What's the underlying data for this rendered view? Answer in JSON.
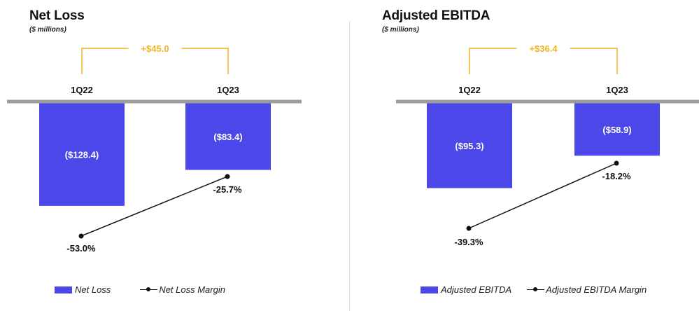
{
  "colors": {
    "bar": "#4c47e8",
    "bracket": "#f0b323",
    "axis": "#9e9e9e",
    "line": "#111111",
    "bar_label": "#ffffff"
  },
  "chart_data": [
    {
      "type": "bar",
      "title": "Net Loss",
      "subtitle": "($ millions)",
      "categories": [
        "1Q22",
        "1Q23"
      ],
      "series": [
        {
          "name": "Net Loss",
          "values": [
            -128.4,
            -83.4
          ],
          "labels": [
            "($128.4)",
            "($83.4)"
          ]
        }
      ],
      "line_series": {
        "name": "Net Loss Margin",
        "values": [
          -53.0,
          -25.7
        ],
        "labels": [
          "-53.0%",
          "-25.7%"
        ]
      },
      "change_label": "+$45.0",
      "legend": [
        "Net Loss",
        "Net Loss Margin"
      ],
      "legend_position": "bottom"
    },
    {
      "type": "bar",
      "title": "Adjusted EBITDA",
      "subtitle": "($ millions)",
      "categories": [
        "1Q22",
        "1Q23"
      ],
      "series": [
        {
          "name": "Adjusted EBITDA",
          "values": [
            -95.3,
            -58.9
          ],
          "labels": [
            "($95.3)",
            "($58.9)"
          ]
        }
      ],
      "line_series": {
        "name": "Adjusted EBITDA Margin",
        "values": [
          -39.3,
          -18.2
        ],
        "labels": [
          "-39.3%",
          "-18.2%"
        ]
      },
      "change_label": "+$36.4",
      "legend": [
        "Adjusted EBITDA",
        "Adjusted EBITDA Margin"
      ],
      "legend_position": "bottom"
    }
  ]
}
